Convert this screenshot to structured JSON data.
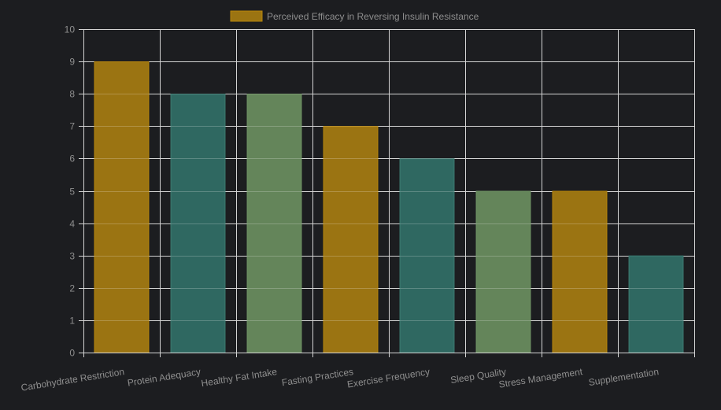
{
  "chart_data": {
    "type": "bar",
    "title": "",
    "xlabel": "",
    "ylabel": "",
    "ylim": [
      0,
      10
    ],
    "yticks": [
      "0",
      "1",
      "2",
      "3",
      "4",
      "5",
      "6",
      "7",
      "8",
      "9",
      "10"
    ],
    "grid": true,
    "legend_position": "top-center",
    "categories": [
      "Carbohydrate Restriction",
      "Protein Adequacy",
      "Healthy Fat Intake",
      "Fasting Practices",
      "Exercise Frequency",
      "Sleep Quality",
      "Stress Management",
      "Supplementation"
    ],
    "series": [
      {
        "name": "Perceived Efficacy in Reversing Insulin Resistance",
        "values": [
          9,
          8,
          8,
          7,
          6,
          5,
          5,
          3
        ],
        "colors": [
          "#9b7412",
          "#2f6861",
          "#64855a",
          "#9b7412",
          "#2f6861",
          "#64855a",
          "#9b7412",
          "#2f6861"
        ],
        "border_colors": [
          "#b8860b",
          "#3f7d74",
          "#6f9365",
          "#b8860b",
          "#3f7d74",
          "#6f9365",
          "#b8860b",
          "#3f7d74"
        ]
      }
    ],
    "legend_color": "#9b7412",
    "legend_border": "#b8860b",
    "grid_color": "#d4d4d4",
    "text_color": "#8e8e8e"
  }
}
